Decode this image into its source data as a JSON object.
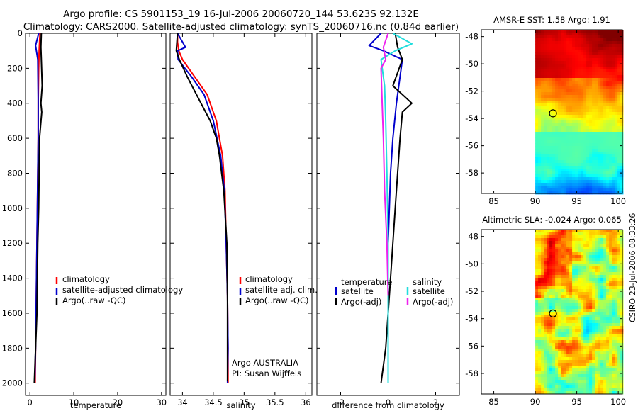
{
  "title": {
    "line1": "Argo profile: CS 5901153_19 16-Jul-2006 20060720_144 53.623S 92.132E",
    "line2": "Climatology: CARS2000. Satellite-adjusted climatology: synTS_20060716.nc (0.84d earlier)"
  },
  "credit": "CSIRO 23-Jul-2006 08:33:26",
  "colors": {
    "red": "#ff0000",
    "blue": "#0000cc",
    "black": "#000000",
    "cyan": "#22dddd",
    "magenta": "#ee22ee"
  },
  "chart_data": [
    {
      "type": "line",
      "panel": "temperature",
      "xlabel": "temperature",
      "ylabel": "",
      "xlim": [
        -1,
        31
      ],
      "ylim": [
        2070,
        0
      ],
      "xticks": [
        0,
        10,
        20,
        30
      ],
      "yticks": [
        0,
        200,
        400,
        600,
        800,
        1000,
        1200,
        1400,
        1600,
        1800,
        2000
      ],
      "series": [
        {
          "name": "climatology",
          "color": "red",
          "x": [
            2.3,
            2.1,
            2.0,
            1.9,
            1.9,
            1.8,
            1.7,
            1.6,
            1.5,
            1.4,
            1.3,
            1.2
          ],
          "y": [
            0,
            100,
            200,
            400,
            600,
            800,
            1000,
            1200,
            1400,
            1600,
            1800,
            2000
          ]
        },
        {
          "name": "satellite-adjusted climatology",
          "color": "blue",
          "x": [
            2.0,
            1.3,
            1.8,
            1.9,
            1.9,
            1.8,
            1.7,
            1.6,
            1.5,
            1.4,
            1.3,
            1.1
          ],
          "y": [
            0,
            70,
            150,
            400,
            600,
            800,
            1000,
            1200,
            1400,
            1600,
            1800,
            2000
          ]
        },
        {
          "name": "Argo(..raw -QC)",
          "color": "black",
          "x": [
            2.6,
            2.5,
            2.6,
            2.8,
            2.5,
            2.7,
            2.2,
            2.1,
            2.0,
            1.8,
            1.7,
            1.6,
            1.3,
            1.0
          ],
          "y": [
            0,
            80,
            150,
            300,
            400,
            450,
            600,
            800,
            1000,
            1200,
            1400,
            1600,
            1800,
            2000
          ]
        }
      ],
      "legend": {
        "position": "bottom-right",
        "entries": [
          "climatology",
          "satellite-adjusted climatology",
          "Argo(..raw -QC)"
        ]
      }
    },
    {
      "type": "line",
      "panel": "salinity",
      "xlabel": "salinity",
      "ylabel": "",
      "xlim": [
        33.8,
        36.1
      ],
      "ylim": [
        2070,
        0
      ],
      "xticks": [
        34,
        34.5,
        35,
        35.5,
        36
      ],
      "series": [
        {
          "name": "climatology",
          "color": "red",
          "x": [
            33.92,
            33.92,
            33.94,
            34.0,
            34.2,
            34.4,
            34.55,
            34.65,
            34.69,
            34.71,
            34.73,
            34.74,
            34.74
          ],
          "y": [
            0,
            50,
            100,
            150,
            250,
            350,
            500,
            700,
            900,
            1200,
            1500,
            1800,
            2000
          ]
        },
        {
          "name": "satellite adj. clim.",
          "color": "blue",
          "x": [
            33.92,
            34.05,
            33.92,
            33.93,
            34.15,
            34.35,
            34.5,
            34.62,
            34.68,
            34.71,
            34.73,
            34.74,
            34.73
          ],
          "y": [
            0,
            80,
            100,
            150,
            250,
            350,
            500,
            700,
            900,
            1200,
            1500,
            1800,
            2000
          ]
        },
        {
          "name": "Argo(..raw -QC)",
          "color": "black",
          "x": [
            33.92,
            33.9,
            33.95,
            34.08,
            34.3,
            34.45,
            34.55,
            34.6,
            34.67,
            34.72,
            34.73,
            34.73,
            34.73
          ],
          "y": [
            0,
            100,
            150,
            250,
            400,
            500,
            600,
            700,
            900,
            1200,
            1500,
            1800,
            1990
          ]
        }
      ],
      "legend": {
        "position": "bottom-right",
        "entries": [
          "climatology",
          "satellite adj. clim.",
          "Argo(..raw -QC)"
        ]
      },
      "annotation": [
        "Argo AUSTRALIA",
        "PI: Susan Wijffels"
      ]
    },
    {
      "type": "line",
      "panel": "difference",
      "xlabel": "difference from climatology",
      "ylabel": "",
      "xlim": [
        -3,
        3
      ],
      "ylim": [
        2070,
        0
      ],
      "xticks": [
        -2,
        0,
        2
      ],
      "zero_line": true,
      "series": [
        {
          "name": "temperature satellite",
          "color": "blue",
          "x": [
            -0.3,
            -0.8,
            -0.2,
            0.6,
            0.35,
            0.2,
            0.1,
            0.05,
            0.0,
            0.0,
            0.0,
            0.0
          ],
          "y": [
            0,
            70,
            100,
            150,
            400,
            600,
            800,
            1000,
            1200,
            1500,
            1800,
            2000
          ]
        },
        {
          "name": "temperature Argo(-adj)",
          "color": "black",
          "x": [
            0.3,
            0.4,
            0.6,
            0.2,
            1.0,
            0.6,
            0.5,
            0.4,
            0.3,
            0.2,
            0.1,
            0.0,
            -0.1,
            -0.3
          ],
          "y": [
            0,
            80,
            150,
            300,
            400,
            450,
            600,
            800,
            1000,
            1200,
            1400,
            1600,
            1800,
            2000
          ]
        },
        {
          "name": "salinity satellite",
          "color": "cyan",
          "x": [
            0.2,
            1.0,
            0.3,
            -0.3,
            -0.15,
            -0.1,
            -0.05,
            0.0,
            0.0,
            0.0
          ],
          "y": [
            0,
            60,
            100,
            150,
            300,
            500,
            800,
            1200,
            1600,
            2000
          ]
        },
        {
          "name": "salinity Argo(-adj)",
          "color": "magenta",
          "x": [
            0.0,
            -0.2,
            -0.1,
            -0.3,
            -0.25,
            -0.2,
            -0.15,
            -0.05,
            0.0
          ],
          "y": [
            0,
            80,
            150,
            200,
            400,
            600,
            900,
            1200,
            1500
          ]
        }
      ],
      "legend": {
        "position": "bottom",
        "entries": [
          "temperature",
          "satellite",
          "Argo(-adj)",
          "salinity",
          "satellite",
          "Argo(-adj)"
        ]
      }
    },
    {
      "type": "heatmap",
      "panel": "sst-map",
      "title": "AMSR-E SST: 1.58 Argo: 1.91",
      "xlim": [
        83.5,
        100.5
      ],
      "ylim": [
        -59.5,
        -47.5
      ],
      "xticks": [
        85,
        90,
        95,
        100
      ],
      "yticks": [
        -48,
        -50,
        -52,
        -54,
        -56,
        -58
      ],
      "no_data_west_of": 90,
      "argo_position": {
        "lon": 92.132,
        "lat": -53.623
      }
    },
    {
      "type": "heatmap",
      "panel": "sla-map",
      "title": "Altimetric SLA: -0.024 Argo: 0.065",
      "xlim": [
        83.5,
        100.5
      ],
      "ylim": [
        -59.5,
        -47.5
      ],
      "xticks": [
        85,
        90,
        95,
        100
      ],
      "yticks": [
        -48,
        -50,
        -52,
        -54,
        -56,
        -58
      ],
      "no_data_west_of": 90,
      "argo_position": {
        "lon": 92.132,
        "lat": -53.623
      }
    }
  ]
}
